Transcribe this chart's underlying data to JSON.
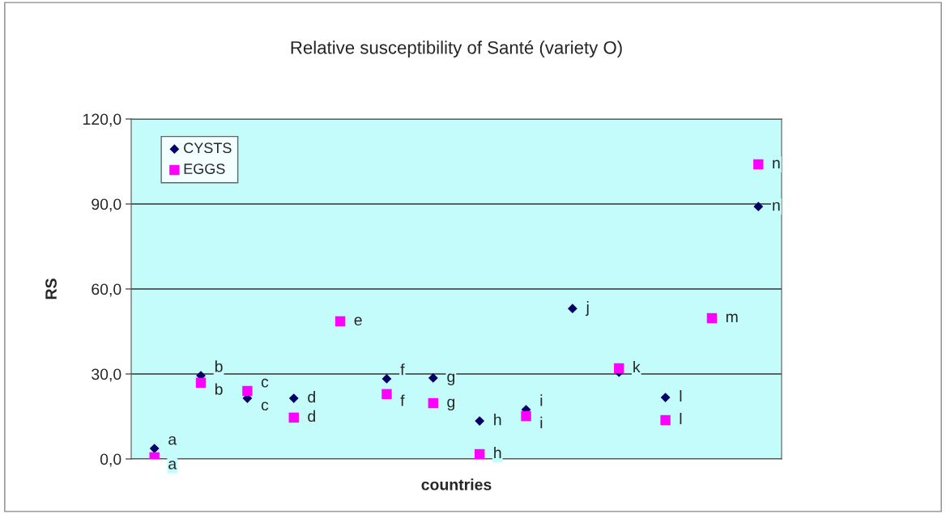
{
  "chart_data": {
    "type": "scatter",
    "title": "Relative susceptibility of Santé (variety O)",
    "xlabel": "countries",
    "ylabel": "RS",
    "categories": [
      null,
      null,
      null,
      null,
      null,
      null,
      null,
      null,
      null,
      null,
      null,
      null,
      null,
      null
    ],
    "series": [
      {
        "name": "CYSTS",
        "color": "#000066",
        "marker": "diamond",
        "values": [
          3.7,
          29.4,
          21.4,
          21.4,
          null,
          28.3,
          28.6,
          13.4,
          17.4,
          53.1,
          30.6,
          21.7,
          null,
          89.1
        ],
        "value_labels": [
          "a",
          "b",
          "c",
          "d",
          null,
          "f",
          "g",
          "h",
          "i",
          "j",
          null,
          "l",
          null,
          "n"
        ]
      },
      {
        "name": "EGGS",
        "color": "#ff00ff",
        "marker": "square",
        "values": [
          0.6,
          26.9,
          24.0,
          14.6,
          48.6,
          22.9,
          19.7,
          1.7,
          15.1,
          null,
          32.0,
          13.7,
          49.7,
          104.0
        ],
        "value_labels": [
          "a",
          "b",
          "c",
          "d",
          "e",
          "f",
          "g",
          "h",
          "i",
          null,
          "k",
          "l",
          "m",
          "n"
        ]
      }
    ],
    "ylim": [
      0,
      120
    ],
    "yticks": [
      {
        "value": 0,
        "label": "0,0"
      },
      {
        "value": 30,
        "label": "30,0"
      },
      {
        "value": 60,
        "label": "60,0"
      },
      {
        "value": 90,
        "label": "90,0"
      },
      {
        "value": 120,
        "label": "120,0"
      }
    ],
    "grid": "y",
    "legend": "top left"
  }
}
